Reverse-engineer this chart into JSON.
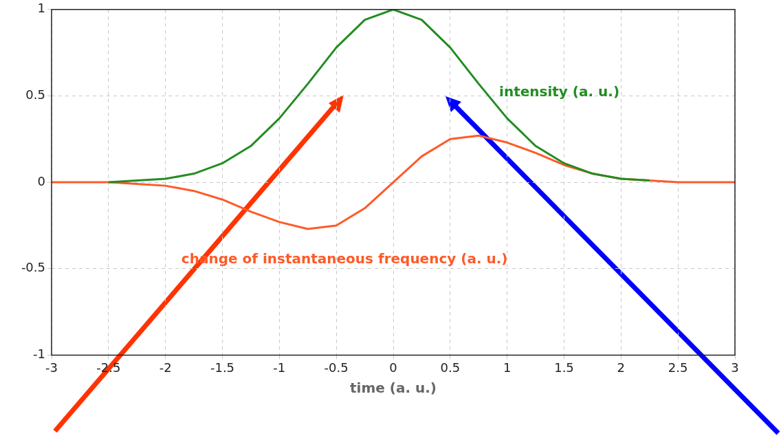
{
  "chart_data": {
    "type": "line",
    "xlabel": "time (a. u.)",
    "xlim": [
      -3,
      3
    ],
    "xticks": [
      -3,
      -2.5,
      -2,
      -1.5,
      -1,
      -0.5,
      0,
      0.5,
      1,
      1.5,
      2,
      2.5,
      3
    ],
    "ylim": [
      -1,
      1
    ],
    "yticks": [
      -1,
      -0.5,
      0,
      0.5,
      1
    ],
    "x": [
      -3,
      -2.75,
      -2.5,
      -2.25,
      -2,
      -1.75,
      -1.5,
      -1.25,
      -1,
      -0.75,
      -0.5,
      -0.25,
      0,
      0.25,
      0.5,
      0.75,
      1,
      1.25,
      1.5,
      1.75,
      2,
      2.25,
      2.5,
      2.75,
      3
    ],
    "series": [
      {
        "name": "intensity (a. u.)",
        "color": "#238c23",
        "values": [
          null,
          null,
          0,
          0.01,
          0.02,
          0.05,
          0.11,
          0.21,
          0.37,
          0.57,
          0.78,
          0.94,
          1,
          0.94,
          0.78,
          0.57,
          0.37,
          0.21,
          0.11,
          0.05,
          0.02,
          0.01,
          null,
          null,
          null
        ]
      },
      {
        "name": "change of instantaneous frequency (a. u.)",
        "color": "#ff5a28",
        "values": [
          0,
          0,
          0,
          -0.01,
          -0.02,
          -0.05,
          -0.1,
          -0.17,
          -0.23,
          -0.27,
          -0.25,
          -0.15,
          0,
          0.15,
          0.25,
          0.27,
          0.23,
          0.17,
          0.1,
          0.05,
          0.02,
          0.01,
          0,
          0,
          0
        ]
      }
    ],
    "grid": true,
    "legend": false,
    "marker": "none",
    "line_style": "solid"
  }
}
